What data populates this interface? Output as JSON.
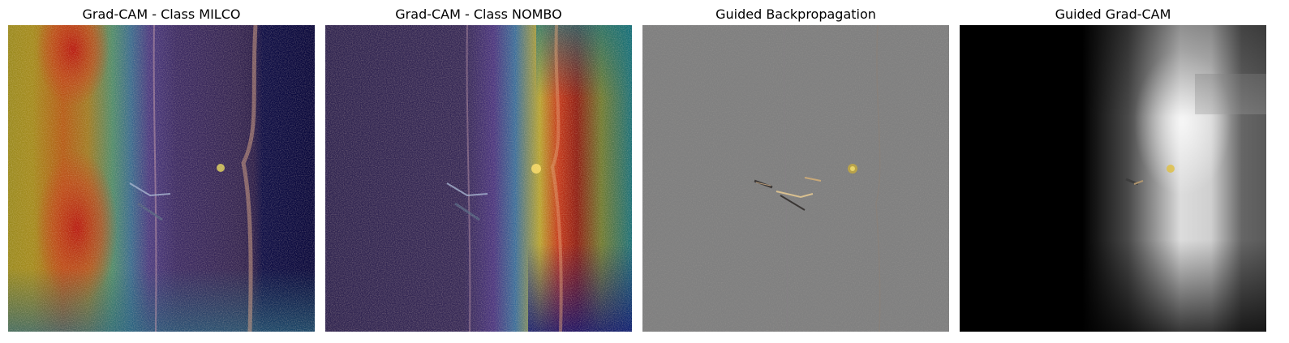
{
  "panels": [
    {
      "title": "Grad-CAM - Class MILCO",
      "content": "heatmap overlay on sonar image"
    },
    {
      "title": "Grad-CAM - Class NOMBO",
      "content": "heatmap overlay on sonar image"
    },
    {
      "title": "Guided Backpropagation",
      "content": "gradient image"
    },
    {
      "title": "Guided Grad-CAM",
      "content": "masked gradient image"
    }
  ]
}
